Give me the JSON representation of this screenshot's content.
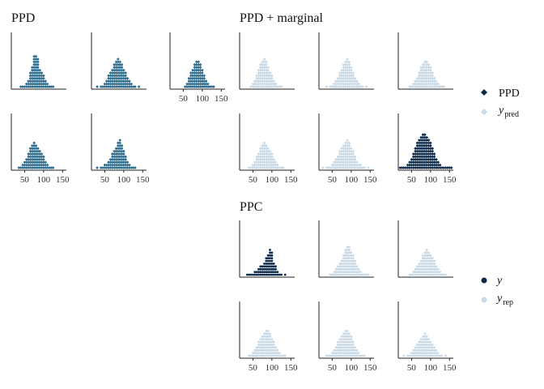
{
  "colors": {
    "ppd": "#2f6d8f",
    "marginal": "#c9d9e6",
    "observed": "#0c2b4b",
    "replicate": "#c9d9e6",
    "axis": "#222222"
  },
  "icons": {
    "ppd_legend": "diamond-icon",
    "ypred_legend": "diamond-icon",
    "y_legend": "dot-icon",
    "yrep_legend": "dot-icon"
  },
  "chart_data": [
    {
      "type": "dot-histogram",
      "title": "PPD",
      "marker": "diamond",
      "panels": 5,
      "x_ticks": [
        50,
        100,
        150
      ],
      "xlim": [
        15,
        160
      ],
      "bin_width": 5,
      "panel_counts": [
        {
          "bins": [
            40,
            45,
            50,
            55,
            60,
            65,
            70,
            75,
            80,
            85,
            90,
            95,
            100,
            105,
            110,
            115,
            120,
            125
          ],
          "counts": [
            1,
            1,
            1,
            2,
            3,
            6,
            8,
            12,
            12,
            11,
            7,
            6,
            5,
            3,
            2,
            1,
            1,
            1
          ]
        },
        {
          "bins": [
            30,
            35,
            40,
            45,
            50,
            55,
            60,
            65,
            70,
            75,
            80,
            85,
            90,
            95,
            100,
            105,
            110,
            115,
            120,
            125,
            130,
            135,
            140
          ],
          "counts": [
            1,
            0,
            1,
            1,
            2,
            3,
            5,
            6,
            7,
            9,
            10,
            11,
            10,
            9,
            7,
            6,
            4,
            3,
            2,
            1,
            1,
            0,
            1
          ]
        },
        {
          "bins": [
            55,
            60,
            65,
            70,
            75,
            80,
            85,
            90,
            95,
            100,
            105,
            110,
            115,
            120,
            125,
            130
          ],
          "counts": [
            1,
            2,
            4,
            6,
            7,
            9,
            10,
            10,
            9,
            7,
            5,
            3,
            2,
            1,
            1,
            1
          ]
        },
        {
          "bins": [
            35,
            40,
            45,
            50,
            55,
            60,
            65,
            70,
            75,
            80,
            85,
            90,
            95,
            100,
            105,
            110,
            115,
            120,
            125
          ],
          "counts": [
            1,
            1,
            2,
            3,
            4,
            6,
            8,
            9,
            10,
            9,
            8,
            7,
            6,
            5,
            3,
            2,
            1,
            1,
            1
          ]
        },
        {
          "bins": [
            30,
            35,
            40,
            45,
            50,
            55,
            60,
            65,
            70,
            75,
            80,
            85,
            90,
            95,
            100,
            105,
            110,
            115,
            120,
            125,
            130
          ],
          "counts": [
            1,
            0,
            1,
            1,
            2,
            2,
            3,
            4,
            6,
            7,
            8,
            10,
            11,
            9,
            7,
            5,
            3,
            2,
            1,
            1,
            1
          ]
        }
      ]
    },
    {
      "type": "dot-histogram",
      "title": "PPD + marginal",
      "marker": "diamond",
      "panels": 6,
      "x_ticks": [
        50,
        100,
        150
      ],
      "xlim": [
        15,
        160
      ],
      "bin_width": 5,
      "series": [
        {
          "name": "PPD",
          "panels": [
            6
          ]
        },
        {
          "name": "y_pred",
          "panels": [
            1,
            2,
            3,
            4,
            5
          ]
        }
      ],
      "panel_counts": [
        {
          "bins": [
            45,
            50,
            55,
            60,
            65,
            70,
            75,
            80,
            85,
            90,
            95,
            100,
            105,
            110,
            115,
            120,
            125
          ],
          "counts": [
            1,
            2,
            3,
            5,
            7,
            9,
            10,
            11,
            10,
            8,
            6,
            5,
            3,
            2,
            1,
            1,
            1
          ]
        },
        {
          "bins": [
            35,
            40,
            45,
            50,
            55,
            60,
            65,
            70,
            75,
            80,
            85,
            90,
            95,
            100,
            105,
            110,
            115,
            120,
            125,
            130,
            135,
            140
          ],
          "counts": [
            1,
            0,
            1,
            1,
            2,
            3,
            4,
            6,
            7,
            9,
            10,
            11,
            10,
            8,
            6,
            4,
            3,
            2,
            1,
            1,
            0,
            1
          ]
        },
        {
          "bins": [
            45,
            50,
            55,
            60,
            65,
            70,
            75,
            80,
            85,
            90,
            95,
            100,
            105,
            110,
            115,
            120,
            125,
            130,
            135
          ],
          "counts": [
            1,
            1,
            2,
            3,
            4,
            6,
            8,
            9,
            10,
            10,
            9,
            8,
            6,
            4,
            3,
            2,
            1,
            1,
            1
          ]
        },
        {
          "bins": [
            40,
            45,
            50,
            55,
            60,
            65,
            70,
            75,
            80,
            85,
            90,
            95,
            100,
            105,
            110,
            115,
            120,
            125,
            130
          ],
          "counts": [
            1,
            1,
            2,
            3,
            5,
            6,
            8,
            9,
            10,
            9,
            8,
            7,
            6,
            4,
            3,
            2,
            1,
            1,
            1
          ]
        },
        {
          "bins": [
            25,
            30,
            35,
            40,
            45,
            50,
            55,
            60,
            65,
            70,
            75,
            80,
            85,
            90,
            95,
            100,
            105,
            110,
            115,
            120,
            125,
            130,
            135,
            140,
            145
          ],
          "counts": [
            1,
            0,
            1,
            1,
            1,
            2,
            3,
            4,
            5,
            7,
            8,
            9,
            10,
            11,
            10,
            8,
            7,
            5,
            3,
            2,
            2,
            1,
            1,
            0,
            1
          ]
        },
        {
          "bins": [
            20,
            25,
            30,
            35,
            40,
            45,
            50,
            55,
            60,
            65,
            70,
            75,
            80,
            85,
            90,
            95,
            100,
            105,
            110,
            115,
            120,
            125,
            130,
            135,
            140,
            145,
            150,
            155
          ],
          "counts": [
            1,
            1,
            1,
            1,
            2,
            3,
            4,
            6,
            8,
            10,
            11,
            12,
            13,
            13,
            12,
            11,
            10,
            8,
            6,
            4,
            3,
            2,
            1,
            1,
            1,
            1,
            1,
            1
          ]
        }
      ],
      "legend": [
        {
          "label": "PPD",
          "color_key": "observed"
        },
        {
          "label": "y",
          "subscript": "pred",
          "color_key": "marginal"
        }
      ]
    },
    {
      "type": "dot-histogram",
      "title": "PPC",
      "marker": "dot",
      "panels": 6,
      "x_ticks": [
        50,
        100,
        150
      ],
      "xlim": [
        15,
        160
      ],
      "bin_width": 5,
      "series": [
        {
          "name": "y",
          "panels": [
            1
          ]
        },
        {
          "name": "y_rep",
          "panels": [
            2,
            3,
            4,
            5,
            6
          ]
        }
      ],
      "panel_counts": [
        {
          "bins": [
            35,
            40,
            45,
            50,
            55,
            60,
            65,
            70,
            75,
            80,
            85,
            90,
            95,
            100,
            105,
            110,
            115,
            120,
            125,
            135
          ],
          "counts": [
            1,
            1,
            1,
            1,
            2,
            2,
            3,
            4,
            4,
            5,
            7,
            8,
            10,
            9,
            5,
            4,
            2,
            1,
            1,
            1
          ]
        },
        {
          "bins": [
            45,
            50,
            55,
            60,
            65,
            70,
            75,
            80,
            85,
            90,
            95,
            100,
            105,
            110,
            115,
            120,
            125,
            130,
            135,
            140,
            145
          ],
          "counts": [
            1,
            1,
            2,
            3,
            4,
            5,
            6,
            8,
            10,
            11,
            11,
            9,
            8,
            6,
            4,
            3,
            2,
            1,
            1,
            1,
            1
          ]
        },
        {
          "bins": [
            45,
            50,
            55,
            60,
            65,
            70,
            75,
            80,
            85,
            90,
            95,
            100,
            105,
            110,
            115,
            120,
            125,
            130,
            135,
            140
          ],
          "counts": [
            1,
            1,
            2,
            3,
            4,
            5,
            6,
            8,
            9,
            10,
            9,
            8,
            7,
            6,
            4,
            3,
            2,
            1,
            1,
            1
          ]
        },
        {
          "bins": [
            40,
            45,
            50,
            55,
            60,
            65,
            70,
            75,
            80,
            85,
            90,
            95,
            100,
            105,
            110,
            115,
            120,
            125,
            130,
            135
          ],
          "counts": [
            1,
            1,
            2,
            3,
            4,
            6,
            7,
            8,
            9,
            10,
            10,
            9,
            7,
            6,
            4,
            3,
            2,
            1,
            1,
            1
          ]
        },
        {
          "bins": [
            35,
            40,
            45,
            50,
            55,
            60,
            65,
            70,
            75,
            80,
            85,
            90,
            95,
            100,
            105,
            110,
            115,
            120,
            125,
            130,
            135
          ],
          "counts": [
            1,
            1,
            1,
            2,
            3,
            4,
            6,
            7,
            8,
            9,
            10,
            10,
            9,
            8,
            6,
            4,
            3,
            2,
            1,
            1,
            1
          ]
        },
        {
          "bins": [
            30,
            35,
            40,
            45,
            50,
            55,
            60,
            65,
            70,
            75,
            80,
            85,
            90,
            95,
            100,
            105,
            110,
            115,
            120,
            125,
            130,
            135,
            140
          ],
          "counts": [
            1,
            0,
            1,
            1,
            2,
            3,
            4,
            5,
            6,
            7,
            8,
            9,
            8,
            7,
            6,
            5,
            4,
            3,
            2,
            1,
            1,
            0,
            1
          ]
        }
      ],
      "legend": [
        {
          "label": "y",
          "subscript": "",
          "color_key": "observed"
        },
        {
          "label": "y",
          "subscript": "rep",
          "color_key": "replicate"
        }
      ]
    }
  ]
}
